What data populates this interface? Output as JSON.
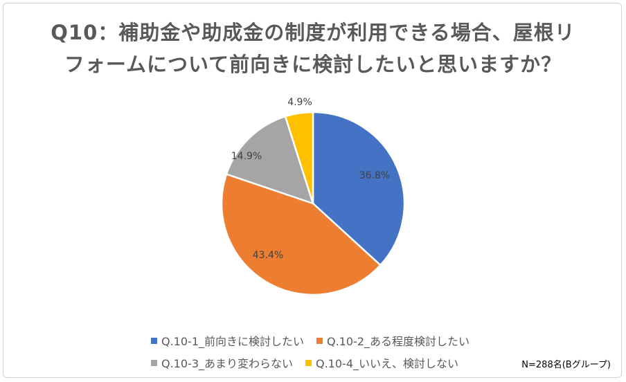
{
  "title": {
    "line1": "Q10：補助金や助成金の制度が利用できる場合、屋根リ",
    "line2": "フォームについて前向きに検討したいと思いますか？"
  },
  "note": "N=288名(Bグループ)",
  "colors": {
    "slice1": "#4472C4",
    "slice2": "#ED7D31",
    "slice3": "#A5A5A5",
    "slice4": "#FFC000"
  },
  "chart_data": {
    "type": "pie",
    "categories": [
      "Q.10-1_前向きに検討したい",
      "Q.10-2_ある程度検討したい",
      "Q.10-3_あまり変わらない",
      "Q.10-4_いいえ、検討しない"
    ],
    "values": [
      36.8,
      43.4,
      14.9,
      4.9
    ],
    "labels": [
      "36.8%",
      "43.4%",
      "14.9%",
      "4.9%"
    ],
    "legend_placement": "bottom"
  }
}
